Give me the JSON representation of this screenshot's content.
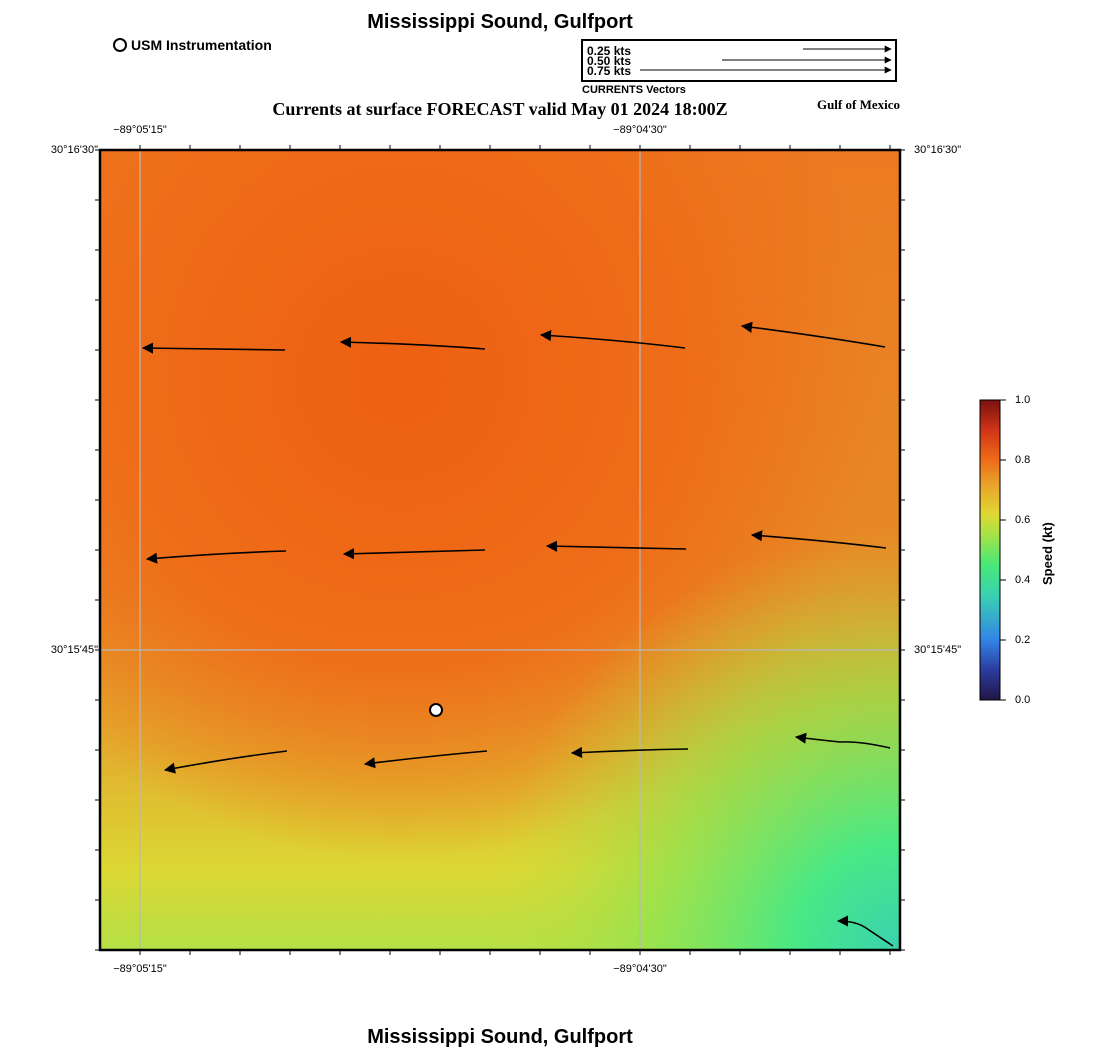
{
  "map": {
    "title": "Mississippi Sound, Gulfport",
    "footer_title": "Mississippi Sound, Gulfport",
    "forecast_title": "Currents at surface FORECAST valid May 01 2024 18:00Z",
    "region_label": "Gulf of Mexico",
    "station_legend": "USM Instrumentation",
    "vector_legend": {
      "caption": "CURRENTS Vectors",
      "entries": [
        {
          "label": "0.25 kts",
          "speed_kt": 0.25
        },
        {
          "label": "0.50 kts",
          "speed_kt": 0.5
        },
        {
          "label": "0.75 kts",
          "speed_kt": 0.75
        }
      ]
    },
    "longitude_ticks": [
      "−89°05'15\"",
      "−89°04'30\""
    ],
    "latitude_ticks": [
      "30°16'30\"",
      "30°15'45\""
    ],
    "colorbar": {
      "label": "Speed (kt)",
      "ticks": [
        "0.0",
        "0.2",
        "0.4",
        "0.6",
        "0.8",
        "1.0"
      ]
    },
    "colors": {
      "fast": "#ef6614",
      "medium": "#e08a26",
      "slow_yellow": "#dcd832",
      "green": "#4aec74",
      "teal": "#3ad2b0",
      "grid": "#b8b8b8"
    }
  }
}
